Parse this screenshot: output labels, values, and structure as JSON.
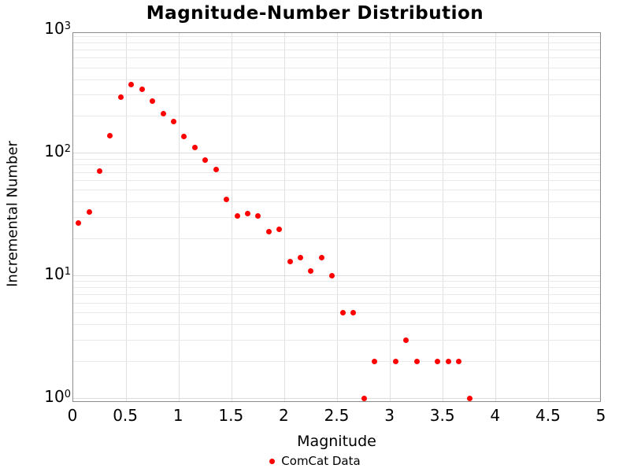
{
  "title": "Magnitude-Number Distribution",
  "axes": {
    "x": {
      "label": "Magnitude",
      "ticks": [
        0,
        0.5,
        1,
        1.5,
        2,
        2.5,
        3,
        3.5,
        4,
        4.5,
        5
      ],
      "tick_labels": [
        "0",
        "0.5",
        "1",
        "1.5",
        "2",
        "2.5",
        "3",
        "3.5",
        "4",
        "4.5",
        "5"
      ]
    },
    "y": {
      "label": "Incremental Number",
      "tick_exponents": [
        0,
        1,
        2,
        3
      ],
      "tick_base": "10",
      "scale": "log"
    }
  },
  "legend": {
    "label": "ComCat Data",
    "marker_color": "#ff0000"
  },
  "chart_data": {
    "type": "scatter",
    "title": "Magnitude-Number Distribution",
    "xlabel": "Magnitude",
    "ylabel": "Incremental Number",
    "xlim": [
      0,
      5
    ],
    "ylog": true,
    "ylim_decades": [
      0,
      3
    ],
    "grid": true,
    "x_grid_step": 0.5,
    "legend_position": "bottom-center",
    "series": [
      {
        "name": "ComCat Data",
        "color": "#ff0000",
        "points": [
          [
            0.05,
            27
          ],
          [
            0.15,
            33
          ],
          [
            0.25,
            72
          ],
          [
            0.35,
            139
          ],
          [
            0.45,
            288
          ],
          [
            0.55,
            364
          ],
          [
            0.65,
            334
          ],
          [
            0.75,
            265
          ],
          [
            0.85,
            211
          ],
          [
            0.95,
            182
          ],
          [
            1.05,
            138
          ],
          [
            1.15,
            111
          ],
          [
            1.25,
            88
          ],
          [
            1.35,
            74
          ],
          [
            1.45,
            42
          ],
          [
            1.55,
            31
          ],
          [
            1.65,
            32
          ],
          [
            1.75,
            31
          ],
          [
            1.85,
            23
          ],
          [
            1.95,
            24
          ],
          [
            2.05,
            13
          ],
          [
            2.15,
            14
          ],
          [
            2.25,
            11
          ],
          [
            2.35,
            14
          ],
          [
            2.45,
            10
          ],
          [
            2.55,
            5
          ],
          [
            2.65,
            5
          ],
          [
            2.75,
            1
          ],
          [
            2.85,
            2
          ],
          [
            3.05,
            2
          ],
          [
            3.15,
            3
          ],
          [
            3.25,
            2
          ],
          [
            3.45,
            2
          ],
          [
            3.55,
            2
          ],
          [
            3.65,
            2
          ],
          [
            3.75,
            1
          ]
        ]
      }
    ]
  }
}
